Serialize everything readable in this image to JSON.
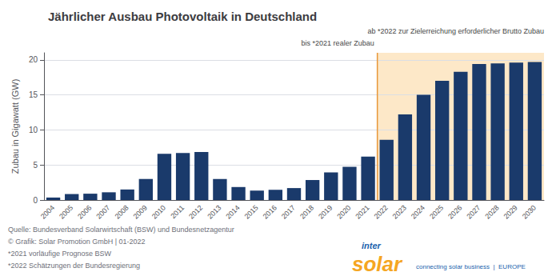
{
  "chart_data": {
    "type": "bar",
    "title": "Jährlicher Ausbau Photovoltaik in Deutschland",
    "ylabel": "Zubau in Gigawatt (GW)",
    "categories": [
      "2004",
      "2005",
      "2006",
      "2007",
      "2008",
      "2009",
      "2010",
      "2011",
      "2012",
      "2013",
      "2014",
      "2015",
      "2016",
      "2017",
      "2018",
      "2019",
      "2020",
      "2021",
      "2022",
      "2023",
      "2024",
      "2025",
      "2026",
      "2027",
      "2028",
      "2029",
      "2030"
    ],
    "values": [
      0.35,
      0.85,
      0.9,
      1.1,
      1.5,
      3.0,
      6.6,
      6.7,
      6.85,
      3.0,
      1.85,
      1.35,
      1.45,
      1.7,
      2.85,
      3.95,
      4.75,
      6.2,
      8.6,
      12.2,
      15.0,
      17.0,
      18.3,
      19.4,
      19.5,
      19.6,
      19.7
    ],
    "color": "#1a3a6b",
    "ylim": [
      0,
      21
    ],
    "yticks": [
      0,
      5,
      10,
      15,
      20
    ],
    "grid": true,
    "annotations": [
      {
        "text": "bis *2021 realer Zubau",
        "x": "2022",
        "side": "left"
      },
      {
        "text": "ab *2022 zur Zielerreichung erforderlicher Brutto Zubau",
        "x": "2022",
        "side": "right"
      }
    ],
    "highlight": {
      "from": "2022",
      "color": "#fde8c8",
      "line_color": "#e8973a"
    },
    "source": [
      "Quelle: Bundesverband Solarwirtschaft (BSW) und Bundesnetzagentur",
      "© Grafik: Solar Promotion GmbH | 01-2022",
      "*2021 vorläufige Prognose BSW",
      "*2022 Schätzungen der Bundesregierung"
    ],
    "logo": [
      {
        "text": "inter",
        "color": "#1a5fad"
      },
      {
        "text": "solar",
        "color": "#f5a623"
      },
      {
        "text": "connecting solar business  |  EUROPE",
        "color": "#1a5fad"
      }
    ]
  }
}
